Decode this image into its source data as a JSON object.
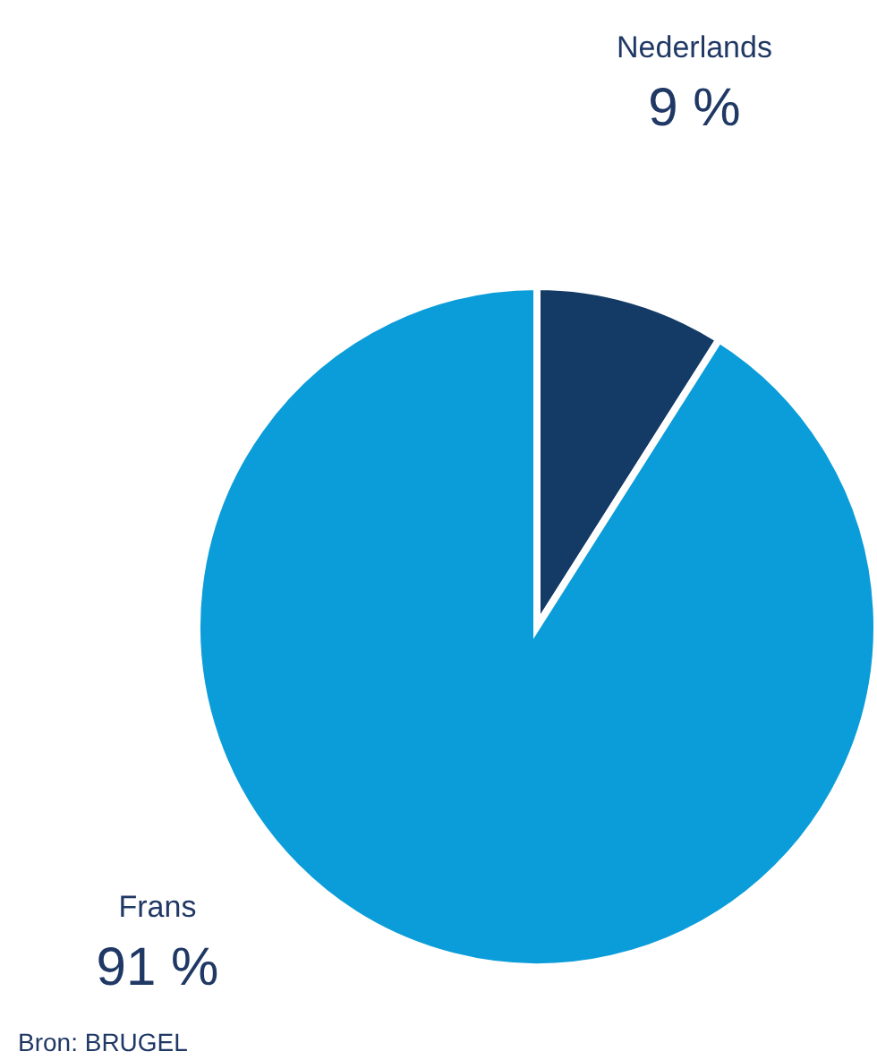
{
  "chart_data": {
    "type": "pie",
    "categories": [
      "Nederlands",
      "Frans"
    ],
    "values": [
      9,
      91
    ],
    "colors": [
      "#143a66",
      "#0b9dd9"
    ],
    "value_labels": [
      "9 %",
      "91 %"
    ],
    "annotations": [
      "Bron: BRUGEL"
    ],
    "legend": false
  }
}
